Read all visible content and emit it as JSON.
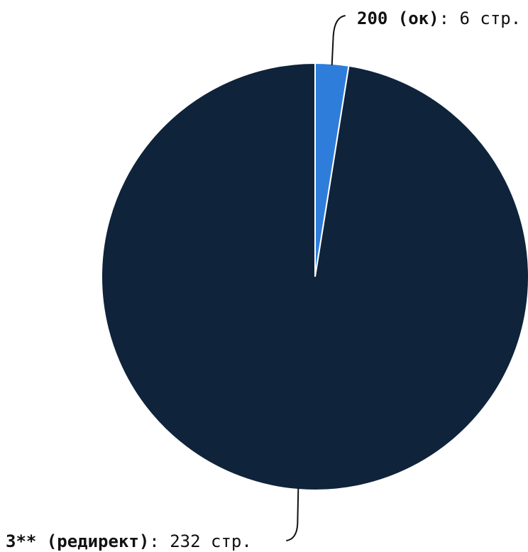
{
  "chart_data": {
    "type": "pie",
    "title": "",
    "categories": [
      "200 (ок)",
      "3** (редирект)"
    ],
    "values": [
      6,
      232
    ],
    "unit": "стр.",
    "colors": [
      "#2f7ddb",
      "#0f233b"
    ],
    "slice_border_color": "#ffffff",
    "leader_line_color": "#111111",
    "start_angle_deg": 0,
    "direction": "clockwise",
    "labels": [
      {
        "name": "200 (ок)",
        "value_text": "6 стр."
      },
      {
        "name": "3** (редирект)",
        "value_text": "232 стр."
      }
    ]
  }
}
